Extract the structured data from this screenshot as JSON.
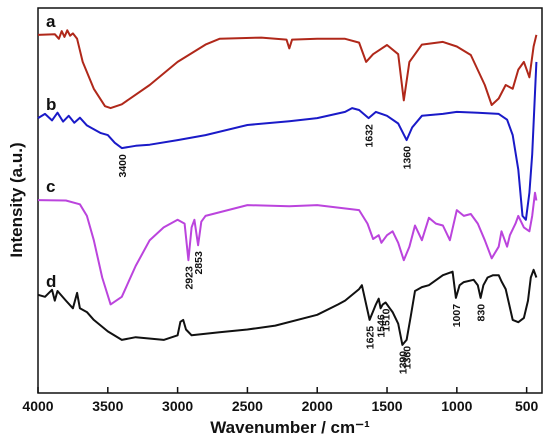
{
  "chart_data": {
    "type": "line",
    "xlabel": "Wavenumber / cm⁻¹",
    "ylabel": "Intensity (a.u.)",
    "xlim": [
      4000,
      390
    ],
    "ylim": [
      0,
      100
    ],
    "xticks": [
      4000,
      3500,
      3000,
      2500,
      2000,
      1500,
      1000,
      500
    ],
    "series": [
      {
        "name": "a",
        "color": "#b0281a",
        "x": [
          4000,
          3880,
          3850,
          3830,
          3810,
          3790,
          3770,
          3750,
          3720,
          3680,
          3600,
          3520,
          3480,
          3400,
          3200,
          3000,
          2800,
          2700,
          2400,
          2220,
          2200,
          2180,
          2000,
          1800,
          1700,
          1650,
          1600,
          1500,
          1420,
          1380,
          1340,
          1250,
          1100,
          1000,
          900,
          800,
          750,
          700,
          650,
          600,
          560,
          520,
          480,
          450,
          430
        ],
        "values": [
          93,
          93.2,
          92,
          94,
          92.5,
          94.2,
          92.8,
          93.4,
          92,
          86,
          79,
          74.5,
          74,
          75,
          80,
          86,
          90.5,
          92,
          92.3,
          91.8,
          89.5,
          91.8,
          92,
          92,
          91,
          86,
          88,
          90.4,
          88,
          76,
          86,
          90.5,
          91.2,
          90,
          87.8,
          80,
          74.8,
          76.5,
          80,
          79,
          84,
          86,
          82,
          90,
          93
        ]
      },
      {
        "name": "b",
        "color": "#1a1ac8",
        "x": [
          4000,
          3950,
          3900,
          3860,
          3820,
          3780,
          3740,
          3700,
          3650,
          3600,
          3550,
          3500,
          3450,
          3400,
          3300,
          3200,
          3000,
          2800,
          2500,
          2200,
          2000,
          1800,
          1750,
          1700,
          1632,
          1580,
          1500,
          1420,
          1360,
          1320,
          1250,
          1100,
          1000,
          850,
          700,
          640,
          600,
          560,
          530,
          505,
          480,
          460,
          440,
          430
        ],
        "values": [
          71.4,
          72.5,
          70.8,
          72.8,
          70.5,
          72,
          70.2,
          71.5,
          69.5,
          68.5,
          67.5,
          67,
          65,
          63.6,
          64.2,
          64.5,
          65.7,
          67,
          69.6,
          70.6,
          71.4,
          73,
          74,
          73.5,
          71.4,
          73,
          72,
          70,
          65.7,
          69,
          72,
          72.5,
          73,
          72.8,
          72.5,
          71,
          67,
          58,
          46,
          45,
          52,
          62,
          78,
          86
        ]
      },
      {
        "name": "c",
        "color": "#bb44dd",
        "x": [
          4000,
          3800,
          3700,
          3650,
          3600,
          3540,
          3480,
          3400,
          3300,
          3200,
          3100,
          3000,
          2950,
          2923,
          2900,
          2880,
          2853,
          2830,
          2800,
          2500,
          2200,
          2000,
          1700,
          1640,
          1600,
          1560,
          1540,
          1500,
          1460,
          1420,
          1380,
          1340,
          1300,
          1250,
          1200,
          1150,
          1100,
          1050,
          1000,
          950,
          900,
          850,
          800,
          750,
          700,
          680,
          640,
          620,
          580,
          560,
          520,
          480,
          460,
          440,
          430
        ],
        "values": [
          50.1,
          50,
          49,
          46,
          39.7,
          30,
          23,
          25,
          33,
          39.7,
          43,
          45,
          44,
          34.5,
          43,
          45,
          38.4,
          44.5,
          46,
          48.8,
          48.5,
          48.8,
          47.5,
          44,
          40,
          41,
          39,
          41,
          42,
          39,
          34.5,
          38,
          43.5,
          39.7,
          45.5,
          44,
          43.5,
          39.7,
          47.5,
          46,
          46.5,
          44,
          39.7,
          35,
          38,
          42,
          38,
          41,
          44,
          46,
          43,
          42,
          46,
          52,
          50
        ]
      },
      {
        "name": "d",
        "color": "#111111",
        "x": [
          4000,
          3950,
          3900,
          3880,
          3860,
          3800,
          3750,
          3720,
          3700,
          3650,
          3600,
          3500,
          3400,
          3300,
          3100,
          3000,
          2980,
          2960,
          2940,
          2900,
          2700,
          2500,
          2300,
          2000,
          1850,
          1800,
          1700,
          1680,
          1625,
          1580,
          1560,
          1546,
          1530,
          1510,
          1480,
          1460,
          1420,
          1390,
          1360,
          1330,
          1300,
          1250,
          1200,
          1100,
          1030,
          1007,
          980,
          950,
          880,
          850,
          830,
          810,
          780,
          740,
          700,
          680,
          650,
          600,
          560,
          520,
          490,
          470,
          450,
          430
        ],
        "values": [
          25.5,
          25,
          26.8,
          24,
          26.5,
          24,
          22,
          26,
          22,
          21,
          19,
          16,
          13.8,
          14.5,
          13.8,
          15,
          18.5,
          19,
          16.5,
          15,
          15.8,
          16.5,
          17.5,
          20.3,
          23,
          24,
          27,
          28,
          19,
          23,
          24.5,
          22,
          23,
          23.5,
          22,
          21,
          18,
          12.5,
          13.8,
          20,
          26.5,
          27.5,
          28,
          30.6,
          31.5,
          24.7,
          28,
          28.8,
          29.4,
          28,
          24.7,
          28,
          30,
          30.6,
          30.6,
          29,
          27,
          19,
          18.4,
          19.5,
          24,
          30,
          32,
          30
        ]
      }
    ],
    "annotations": [
      {
        "label": "3400",
        "x": 3400,
        "series": 1
      },
      {
        "label": "1632",
        "x": 1632,
        "series": 1
      },
      {
        "label": "1360",
        "x": 1360,
        "series": 1
      },
      {
        "label": "2923",
        "x": 2923,
        "series": 2
      },
      {
        "label": "2853",
        "x": 2853,
        "series": 2
      },
      {
        "label": "1625",
        "x": 1625,
        "series": 3
      },
      {
        "label": "1546",
        "x": 1546,
        "series": 3
      },
      {
        "label": "1510",
        "x": 1510,
        "series": 3
      },
      {
        "label": "1390",
        "x": 1390,
        "series": 3
      },
      {
        "label": "1360",
        "x": 1360,
        "series": 3
      },
      {
        "label": "1007",
        "x": 1007,
        "series": 3
      },
      {
        "label": "830",
        "x": 830,
        "series": 3
      }
    ]
  }
}
